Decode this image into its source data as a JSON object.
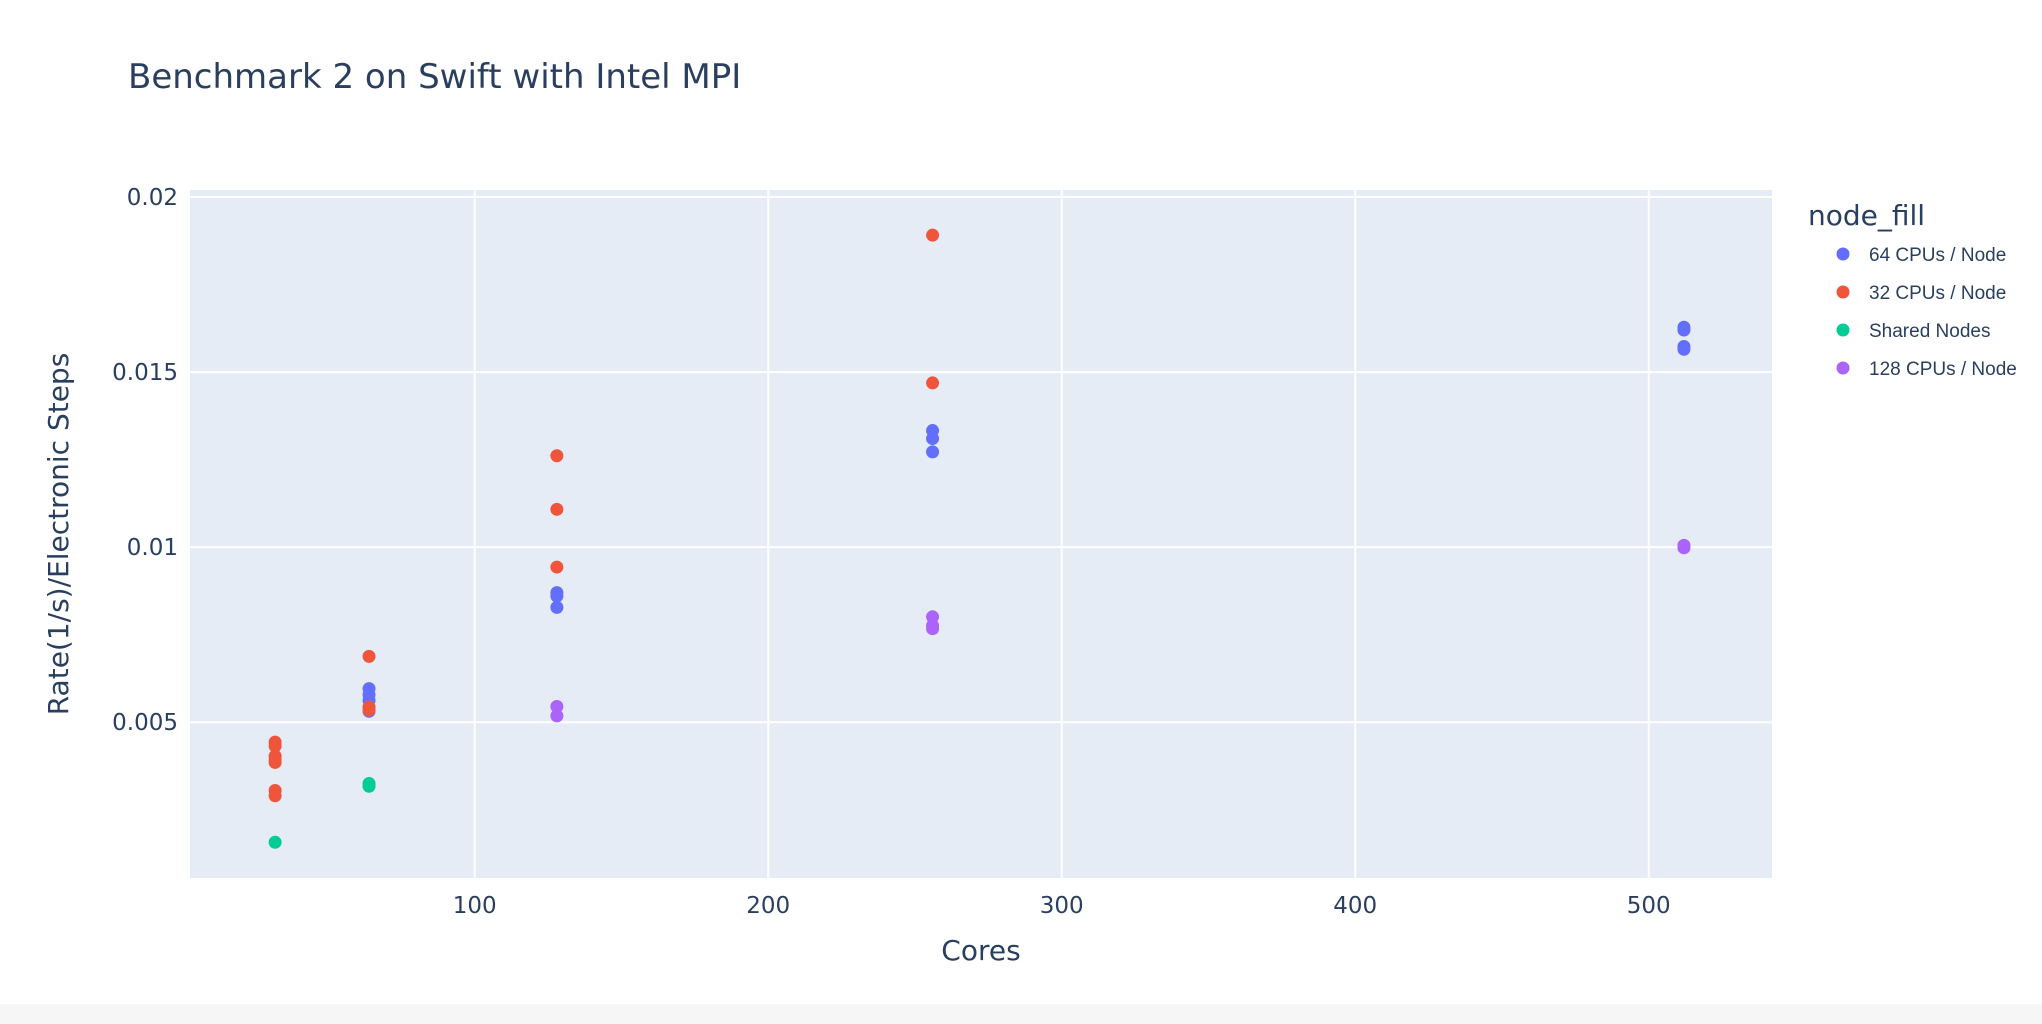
{
  "chart_data": {
    "type": "scatter",
    "title": "Benchmark 2 on Swift with Intel MPI",
    "xlabel": "Cores",
    "ylabel": "Rate(1/s)/Electronic Steps",
    "xlim": [
      3,
      542
    ],
    "ylim": [
      0.00055,
      0.0202
    ],
    "x_ticks": [
      {
        "value": 100,
        "label": "100"
      },
      {
        "value": 200,
        "label": "200"
      },
      {
        "value": 300,
        "label": "300"
      },
      {
        "value": 400,
        "label": "400"
      },
      {
        "value": 500,
        "label": "500"
      }
    ],
    "y_ticks": [
      {
        "value": 0.005,
        "label": "0.005"
      },
      {
        "value": 0.01,
        "label": "0.01"
      },
      {
        "value": 0.015,
        "label": "0.015"
      },
      {
        "value": 0.02,
        "label": "0.02"
      }
    ],
    "grid": true,
    "legend": {
      "title": "node_fill",
      "position": "right"
    },
    "series": [
      {
        "name": "64 CPUs / Node",
        "color": "#636efa",
        "points": [
          {
            "x": 64,
            "y": 0.00596
          },
          {
            "x": 64,
            "y": 0.00578
          },
          {
            "x": 64,
            "y": 0.00562
          },
          {
            "x": 64,
            "y": 0.00531
          },
          {
            "x": 128,
            "y": 0.0087
          },
          {
            "x": 128,
            "y": 0.0086
          },
          {
            "x": 128,
            "y": 0.00828
          },
          {
            "x": 256,
            "y": 0.01333
          },
          {
            "x": 256,
            "y": 0.0131
          },
          {
            "x": 256,
            "y": 0.01272
          },
          {
            "x": 512,
            "y": 0.01628
          },
          {
            "x": 512,
            "y": 0.0162
          },
          {
            "x": 512,
            "y": 0.01573
          },
          {
            "x": 512,
            "y": 0.01565
          }
        ]
      },
      {
        "name": "32 CPUs / Node",
        "color": "#ef553b",
        "points": [
          {
            "x": 32,
            "y": 0.00443
          },
          {
            "x": 32,
            "y": 0.00432
          },
          {
            "x": 32,
            "y": 0.00403
          },
          {
            "x": 32,
            "y": 0.00392
          },
          {
            "x": 32,
            "y": 0.00385
          },
          {
            "x": 32,
            "y": 0.00305
          },
          {
            "x": 32,
            "y": 0.0029
          },
          {
            "x": 64,
            "y": 0.00688
          },
          {
            "x": 64,
            "y": 0.00543
          },
          {
            "x": 64,
            "y": 0.00535
          },
          {
            "x": 128,
            "y": 0.01261
          },
          {
            "x": 128,
            "y": 0.01108
          },
          {
            "x": 128,
            "y": 0.00943
          },
          {
            "x": 256,
            "y": 0.01891
          },
          {
            "x": 256,
            "y": 0.01469
          }
        ]
      },
      {
        "name": "Shared Nodes",
        "color": "#00cc96",
        "points": [
          {
            "x": 32,
            "y": 0.00157
          },
          {
            "x": 64,
            "y": 0.00325
          },
          {
            "x": 64,
            "y": 0.00317
          }
        ]
      },
      {
        "name": "128 CPUs / Node",
        "color": "#ab63fa",
        "points": [
          {
            "x": 128,
            "y": 0.00545
          },
          {
            "x": 128,
            "y": 0.00518
          },
          {
            "x": 256,
            "y": 0.00801
          },
          {
            "x": 256,
            "y": 0.00776
          },
          {
            "x": 256,
            "y": 0.00767
          },
          {
            "x": 512,
            "y": 0.01005
          },
          {
            "x": 512,
            "y": 0.00998
          }
        ]
      }
    ]
  }
}
